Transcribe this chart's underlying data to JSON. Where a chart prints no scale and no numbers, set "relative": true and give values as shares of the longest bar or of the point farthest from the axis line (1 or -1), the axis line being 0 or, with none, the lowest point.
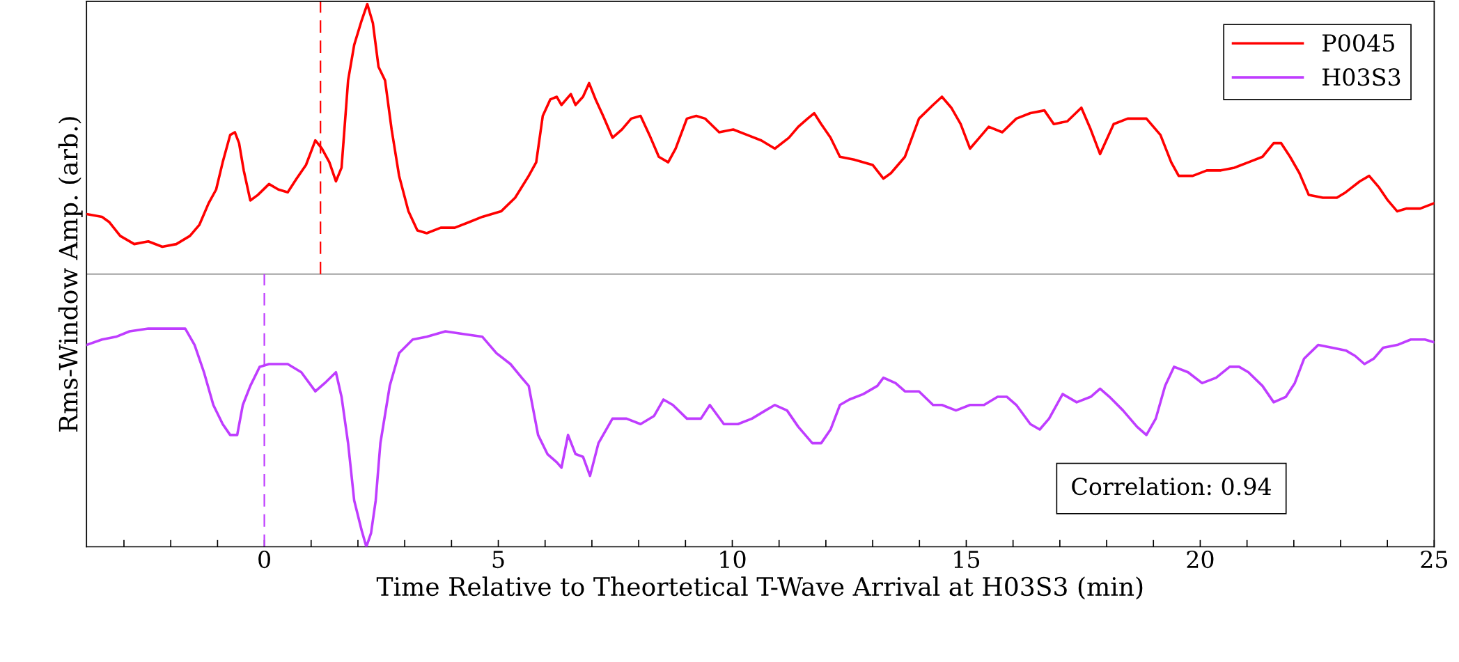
{
  "chart_data": {
    "type": "line",
    "relative": true,
    "xlabel": "Time Relative to Theortetical T-Wave Arrival at H03S3 (min)",
    "ylabel": "Rms-Window Amp. (arb.)",
    "xlim": [
      -3.8,
      25
    ],
    "xticks": [
      {
        "value": -3,
        "label": null
      },
      {
        "value": -2,
        "label": null
      },
      {
        "value": -1,
        "label": null
      },
      0,
      {
        "value": 1,
        "label": null
      },
      {
        "value": 2,
        "label": null
      },
      {
        "value": 3,
        "label": null
      },
      {
        "value": 4,
        "label": null
      },
      5,
      {
        "value": 6,
        "label": null
      },
      {
        "value": 7,
        "label": null
      },
      {
        "value": 8,
        "label": null
      },
      {
        "value": 9,
        "label": null
      },
      10,
      {
        "value": 11,
        "label": null
      },
      {
        "value": 12,
        "label": null
      },
      {
        "value": 13,
        "label": null
      },
      {
        "value": 14,
        "label": null
      },
      15,
      {
        "value": 16,
        "label": null
      },
      {
        "value": 17,
        "label": null
      },
      {
        "value": 18,
        "label": null
      },
      {
        "value": 19,
        "label": null
      },
      20,
      {
        "value": 21,
        "label": null
      },
      {
        "value": 22,
        "label": null
      },
      {
        "value": 23,
        "label": null
      },
      {
        "value": 24,
        "label": null
      },
      25
    ],
    "tick_labels": "x",
    "grid": false,
    "legend": "top right",
    "marker": "none",
    "line_style": "solid",
    "ref_lines": [
      {
        "axis": "x",
        "value": 1.2,
        "color": "#ff0000",
        "line_style": "dashed"
      },
      {
        "axis": "x",
        "value": 0,
        "color": "#bf3dff",
        "line_style": "dashed"
      }
    ],
    "annotations": [
      "Correlation: 0.94"
    ],
    "series": [
      {
        "name": "P0045",
        "color": "#ff0000",
        "x": [
          -3.8,
          -3.47,
          -3.31,
          -3.08,
          -2.78,
          -2.48,
          -2.18,
          -1.88,
          -1.59,
          -1.39,
          -1.19,
          -1.03,
          -0.89,
          -0.73,
          -0.63,
          -0.54,
          -0.44,
          -0.3,
          -0.14,
          0.1,
          0.3,
          0.5,
          0.69,
          0.89,
          1.09,
          1.23,
          1.39,
          1.53,
          1.65,
          1.79,
          1.92,
          2.08,
          2.2,
          2.32,
          2.44,
          2.58,
          2.72,
          2.88,
          3.08,
          3.27,
          3.47,
          3.77,
          4.07,
          4.37,
          4.66,
          5.06,
          5.36,
          5.65,
          5.81,
          5.95,
          6.11,
          6.25,
          6.35,
          6.55,
          6.65,
          6.81,
          6.94,
          7.08,
          7.24,
          7.44,
          7.64,
          7.84,
          8.04,
          8.23,
          8.43,
          8.63,
          8.79,
          9.03,
          9.23,
          9.42,
          9.72,
          10.02,
          10.32,
          10.62,
          10.91,
          11.21,
          11.41,
          11.61,
          11.75,
          11.9,
          12.1,
          12.3,
          12.6,
          13.0,
          13.23,
          13.39,
          13.69,
          13.99,
          14.29,
          14.48,
          14.68,
          14.88,
          15.08,
          15.28,
          15.48,
          15.77,
          16.07,
          16.37,
          16.67,
          16.87,
          17.16,
          17.46,
          17.66,
          17.86,
          18.15,
          18.45,
          18.85,
          19.15,
          19.38,
          19.54,
          19.84,
          20.14,
          20.44,
          20.73,
          21.03,
          21.33,
          21.57,
          21.73,
          21.92,
          22.12,
          22.32,
          22.62,
          22.92,
          23.11,
          23.41,
          23.61,
          23.81,
          24.01,
          24.21,
          24.4,
          24.7,
          25
        ],
        "values": [
          0.22,
          0.21,
          0.19,
          0.14,
          0.11,
          0.12,
          0.1,
          0.11,
          0.14,
          0.18,
          0.26,
          0.31,
          0.41,
          0.51,
          0.52,
          0.48,
          0.38,
          0.27,
          0.29,
          0.33,
          0.31,
          0.3,
          0.35,
          0.4,
          0.49,
          0.46,
          0.41,
          0.34,
          0.39,
          0.71,
          0.84,
          0.93,
          0.99,
          0.92,
          0.76,
          0.71,
          0.53,
          0.36,
          0.23,
          0.16,
          0.15,
          0.17,
          0.17,
          0.19,
          0.21,
          0.23,
          0.28,
          0.36,
          0.41,
          0.58,
          0.64,
          0.65,
          0.62,
          0.66,
          0.62,
          0.65,
          0.7,
          0.64,
          0.58,
          0.5,
          0.53,
          0.57,
          0.58,
          0.51,
          0.43,
          0.41,
          0.46,
          0.57,
          0.58,
          0.57,
          0.52,
          0.53,
          0.51,
          0.49,
          0.46,
          0.5,
          0.54,
          0.57,
          0.59,
          0.55,
          0.5,
          0.43,
          0.42,
          0.4,
          0.35,
          0.37,
          0.43,
          0.57,
          0.62,
          0.65,
          0.61,
          0.55,
          0.46,
          0.5,
          0.54,
          0.52,
          0.57,
          0.59,
          0.6,
          0.55,
          0.56,
          0.61,
          0.53,
          0.44,
          0.55,
          0.57,
          0.57,
          0.51,
          0.41,
          0.36,
          0.36,
          0.38,
          0.38,
          0.39,
          0.41,
          0.43,
          0.48,
          0.48,
          0.43,
          0.37,
          0.29,
          0.28,
          0.28,
          0.3,
          0.34,
          0.36,
          0.32,
          0.27,
          0.23,
          0.24,
          0.24,
          0.26
        ]
      },
      {
        "name": "H03S3",
        "color": "#bf3dff",
        "x": [
          -3.8,
          -3.47,
          -3.17,
          -2.88,
          -2.48,
          -2.08,
          -1.69,
          -1.49,
          -1.29,
          -1.09,
          -0.89,
          -0.73,
          -0.58,
          -0.46,
          -0.3,
          -0.1,
          0.1,
          0.5,
          0.79,
          1.09,
          1.29,
          1.53,
          1.65,
          1.79,
          1.92,
          2.08,
          2.18,
          2.28,
          2.38,
          2.48,
          2.68,
          2.88,
          3.17,
          3.47,
          3.87,
          4.27,
          4.66,
          4.96,
          5.26,
          5.5,
          5.65,
          5.85,
          6.05,
          6.25,
          6.35,
          6.49,
          6.65,
          6.81,
          6.96,
          7.14,
          7.44,
          7.74,
          8.04,
          8.33,
          8.53,
          8.73,
          9.03,
          9.33,
          9.52,
          9.82,
          10.12,
          10.42,
          10.71,
          10.91,
          11.17,
          11.41,
          11.71,
          11.9,
          12.1,
          12.3,
          12.5,
          12.8,
          13.1,
          13.23,
          13.49,
          13.69,
          13.99,
          14.29,
          14.48,
          14.78,
          15.08,
          15.38,
          15.67,
          15.87,
          16.07,
          16.37,
          16.57,
          16.77,
          17.06,
          17.36,
          17.66,
          17.86,
          18.06,
          18.35,
          18.65,
          18.85,
          19.05,
          19.25,
          19.44,
          19.74,
          20.04,
          20.34,
          20.63,
          20.83,
          21.03,
          21.33,
          21.57,
          21.83,
          22.02,
          22.22,
          22.52,
          22.82,
          23.11,
          23.31,
          23.51,
          23.71,
          23.91,
          24.21,
          24.5,
          24.8,
          25
        ],
        "values": [
          -0.26,
          -0.24,
          -0.23,
          -0.21,
          -0.2,
          -0.2,
          -0.2,
          -0.26,
          -0.36,
          -0.48,
          -0.55,
          -0.59,
          -0.59,
          -0.48,
          -0.41,
          -0.34,
          -0.33,
          -0.33,
          -0.36,
          -0.43,
          -0.4,
          -0.36,
          -0.45,
          -0.62,
          -0.83,
          -0.94,
          -1.0,
          -0.95,
          -0.83,
          -0.62,
          -0.41,
          -0.29,
          -0.24,
          -0.23,
          -0.21,
          -0.22,
          -0.23,
          -0.29,
          -0.33,
          -0.38,
          -0.41,
          -0.59,
          -0.66,
          -0.69,
          -0.71,
          -0.59,
          -0.66,
          -0.67,
          -0.74,
          -0.62,
          -0.53,
          -0.53,
          -0.55,
          -0.52,
          -0.46,
          -0.48,
          -0.53,
          -0.53,
          -0.48,
          -0.55,
          -0.55,
          -0.53,
          -0.5,
          -0.48,
          -0.5,
          -0.56,
          -0.62,
          -0.62,
          -0.57,
          -0.48,
          -0.46,
          -0.44,
          -0.41,
          -0.38,
          -0.4,
          -0.43,
          -0.43,
          -0.48,
          -0.48,
          -0.5,
          -0.48,
          -0.48,
          -0.45,
          -0.45,
          -0.48,
          -0.55,
          -0.57,
          -0.53,
          -0.44,
          -0.47,
          -0.45,
          -0.42,
          -0.45,
          -0.5,
          -0.56,
          -0.59,
          -0.53,
          -0.41,
          -0.34,
          -0.36,
          -0.4,
          -0.38,
          -0.34,
          -0.34,
          -0.36,
          -0.41,
          -0.47,
          -0.45,
          -0.4,
          -0.31,
          -0.26,
          -0.27,
          -0.28,
          -0.3,
          -0.33,
          -0.31,
          -0.27,
          -0.26,
          -0.24,
          -0.24,
          -0.25
        ]
      }
    ]
  }
}
